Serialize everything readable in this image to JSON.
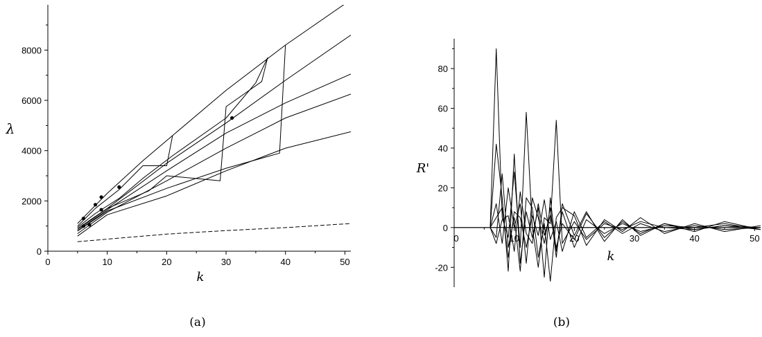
{
  "chart_data": [
    {
      "type": "line",
      "caption": "(a)",
      "xlabel": "k",
      "ylabel": "λ",
      "xlim": [
        0,
        51
      ],
      "ylim": [
        0,
        9800
      ],
      "xticks": [
        0,
        10,
        20,
        30,
        40,
        50
      ],
      "yticks": [
        0,
        2000,
        4000,
        6000,
        8000
      ],
      "grid": false,
      "series": [
        {
          "style": "solid",
          "x": [
            5,
            10,
            16,
            21,
            30,
            40,
            51
          ],
          "y": [
            1100,
            2300,
            3600,
            4600,
            6400,
            8200,
            10000
          ]
        },
        {
          "style": "solid",
          "x": [
            5,
            8,
            12,
            16,
            20,
            21
          ],
          "y": [
            1000,
            1700,
            2450,
            3400,
            3400,
            4600
          ]
        },
        {
          "style": "solid",
          "x": [
            5,
            8,
            12,
            16,
            21,
            30,
            35,
            37
          ],
          "y": [
            950,
            1500,
            2100,
            2900,
            3800,
            5300,
            6700,
            7700
          ]
        },
        {
          "style": "solid",
          "x": [
            5,
            10,
            17,
            20,
            29,
            30,
            36,
            37
          ],
          "y": [
            900,
            1700,
            2400,
            3000,
            2800,
            5750,
            6750,
            7700
          ]
        },
        {
          "style": "solid",
          "x": [
            5,
            10,
            20,
            30,
            39,
            40
          ],
          "y": [
            800,
            1600,
            2500,
            3300,
            3900,
            8200
          ]
        },
        {
          "style": "solid",
          "x": [
            5,
            10,
            20,
            30,
            40,
            51
          ],
          "y": [
            850,
            1700,
            3500,
            5100,
            6800,
            8600
          ]
        },
        {
          "style": "solid",
          "x": [
            5,
            10,
            20,
            30,
            40,
            51
          ],
          "y": [
            800,
            1650,
            3200,
            4700,
            5900,
            7050
          ]
        },
        {
          "style": "solid",
          "x": [
            5,
            10,
            20,
            30,
            40,
            51
          ],
          "y": [
            700,
            1550,
            2800,
            4100,
            5300,
            6250
          ]
        },
        {
          "style": "solid",
          "x": [
            5,
            10,
            20,
            30,
            40,
            51
          ],
          "y": [
            600,
            1450,
            2200,
            3200,
            4100,
            4750
          ]
        },
        {
          "style": "dashed",
          "x": [
            5,
            10,
            20,
            30,
            40,
            51
          ],
          "y": [
            380,
            480,
            680,
            820,
            940,
            1100
          ]
        }
      ],
      "markers": {
        "x": [
          6,
          6,
          7,
          8,
          9,
          9,
          12,
          31
        ],
        "y": [
          1300,
          1000,
          1050,
          1850,
          2150,
          1650,
          2550,
          5300
        ]
      }
    },
    {
      "type": "line",
      "caption": "(b)",
      "xlabel": "k",
      "ylabel": "R'",
      "xlim": [
        0,
        51
      ],
      "ylim": [
        -30,
        95
      ],
      "xticks": [
        0,
        10,
        20,
        30,
        40,
        50
      ],
      "yticks": [
        -20,
        0,
        20,
        40,
        60,
        80
      ],
      "grid": false,
      "series": [
        {
          "x": [
            0,
            51
          ],
          "y": [
            0,
            0
          ]
        },
        {
          "x": [
            6,
            7,
            8,
            9,
            10,
            11,
            12,
            13,
            14,
            15,
            16,
            17,
            18,
            20,
            22,
            25,
            28,
            31,
            35,
            40,
            45,
            51
          ],
          "y": [
            0,
            90,
            5,
            -5,
            28,
            -10,
            58,
            0,
            -20,
            5,
            2,
            54,
            -8,
            3,
            -6,
            2,
            -1,
            3,
            0,
            -1,
            1,
            0
          ]
        },
        {
          "x": [
            6,
            7,
            8,
            9,
            10,
            11,
            12,
            13,
            14,
            15,
            16,
            17,
            18,
            20,
            22,
            25,
            28,
            31,
            35,
            40,
            45,
            51
          ],
          "y": [
            0,
            42,
            15,
            -22,
            37,
            -18,
            8,
            -5,
            10,
            -25,
            15,
            -12,
            8,
            -10,
            4,
            -3,
            2,
            -2,
            1,
            0,
            2,
            -1
          ]
        },
        {
          "x": [
            6,
            7,
            8,
            9,
            10,
            11,
            12,
            13,
            14,
            15,
            16,
            17,
            18,
            20,
            22,
            25,
            28,
            31,
            35,
            40,
            45,
            51
          ],
          "y": [
            0,
            -5,
            27,
            -10,
            5,
            -22,
            15,
            10,
            -15,
            2,
            -27,
            5,
            10,
            6,
            -9,
            4,
            -2,
            5,
            -3,
            2,
            -2,
            1
          ]
        },
        {
          "x": [
            6,
            7,
            8,
            9,
            10,
            11,
            12,
            13,
            14,
            15,
            16,
            17,
            18,
            20,
            22,
            25,
            28,
            31,
            35,
            40,
            45,
            51
          ],
          "y": [
            0,
            12,
            -8,
            20,
            0,
            12,
            -18,
            15,
            5,
            -8,
            10,
            -15,
            12,
            -4,
            8,
            -7,
            4,
            -4,
            2,
            -2,
            3,
            -1
          ]
        },
        {
          "x": [
            6,
            7,
            8,
            9,
            10,
            11,
            12,
            13,
            14,
            15,
            16,
            17,
            18,
            20,
            22,
            25,
            28,
            31,
            35,
            40,
            45,
            51
          ],
          "y": [
            0,
            5,
            10,
            -15,
            8,
            5,
            -10,
            6,
            -4,
            14,
            -6,
            3,
            -12,
            8,
            -5,
            3,
            -3,
            2,
            -2,
            1,
            -1,
            0
          ]
        },
        {
          "x": [
            6,
            7,
            8,
            9,
            10,
            11,
            12,
            13,
            14,
            15,
            16,
            17,
            18,
            20,
            22,
            25,
            28,
            31,
            35,
            40,
            45,
            51
          ],
          "y": [
            0,
            -8,
            4,
            6,
            -12,
            18,
            -3,
            -8,
            12,
            -4,
            6,
            -10,
            2,
            -6,
            7,
            -5,
            3,
            -3,
            2,
            -1,
            1,
            -1
          ]
        }
      ]
    }
  ]
}
